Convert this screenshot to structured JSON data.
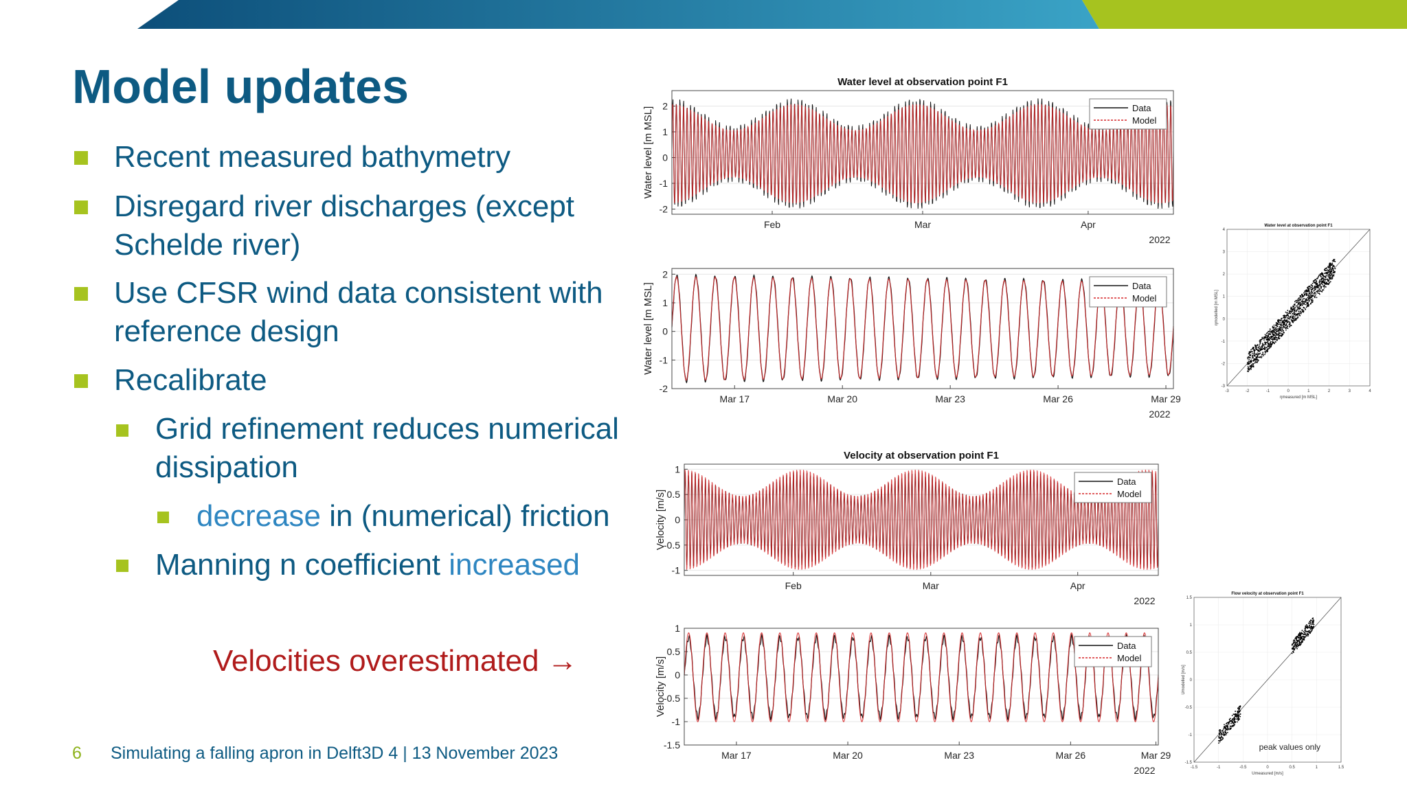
{
  "slide": {
    "title": "Model updates",
    "bullets": [
      {
        "level": 1,
        "lines": [
          "Recent measured bathymetry"
        ]
      },
      {
        "level": 1,
        "lines": [
          "Disregard river discharges (except",
          "Schelde river)"
        ]
      },
      {
        "level": 1,
        "lines": [
          "Use CFSR wind data consistent with",
          "reference design"
        ]
      },
      {
        "level": 1,
        "lines": [
          "Recalibrate"
        ]
      },
      {
        "level": 2,
        "lines": [
          "Grid refinement reduces numerical",
          "dissipation"
        ]
      },
      {
        "level": 3,
        "accent": "decrease",
        "rest": " in (numerical) friction"
      },
      {
        "level": 2,
        "text": "Manning n coefficient ",
        "accent": "increased"
      }
    ],
    "callout": "Velocities overestimated →",
    "footer": {
      "page": "6",
      "text": "Simulating a falling apron in Delft3D 4 | 13 November 2023"
    }
  },
  "colors": {
    "title": "#0d5a82",
    "bullet_square": "#a6c31f",
    "accent": "#2e86c1",
    "callout": "#b01b1b",
    "data": "#111111",
    "model": "#d62728"
  },
  "chart_data": [
    {
      "type": "line",
      "title": "Water level at observation point F1",
      "ylabel": "Water level [m MSL]",
      "yticks": [
        "-2",
        "-1",
        "0",
        "1",
        "2"
      ],
      "ylim": [
        -2.2,
        2.6
      ],
      "xticks": [
        "Feb",
        "Mar",
        "Apr"
      ],
      "year": "2022",
      "legend": [
        "Data",
        "Model"
      ],
      "series": [
        {
          "name": "Data"
        },
        {
          "name": "Model"
        }
      ]
    },
    {
      "type": "line",
      "title": "",
      "ylabel": "Water level [m MSL]",
      "yticks": [
        "-2",
        "-1",
        "0",
        "1",
        "2"
      ],
      "ylim": [
        -2,
        2.2
      ],
      "xticks": [
        "Mar 17",
        "Mar 20",
        "Mar 23",
        "Mar 26",
        "Mar 29"
      ],
      "year": "2022",
      "legend": [
        "Data",
        "Model"
      ],
      "series": [
        {
          "name": "Data"
        },
        {
          "name": "Model"
        }
      ]
    },
    {
      "type": "line",
      "title": "Velocity at observation point F1",
      "ylabel": "Velocity [m/s]",
      "yticks": [
        "-1",
        "-0.5",
        "0",
        "0.5",
        "1"
      ],
      "ylim": [
        -1.1,
        1.1
      ],
      "xticks": [
        "Feb",
        "Mar",
        "Apr"
      ],
      "year": "2022",
      "legend": [
        "Data",
        "Model"
      ],
      "series": [
        {
          "name": "Data"
        },
        {
          "name": "Model"
        }
      ]
    },
    {
      "type": "line",
      "title": "",
      "ylabel": "Velocity [m/s]",
      "yticks": [
        "-1.5",
        "-1",
        "-0.5",
        "0",
        "0.5",
        "1"
      ],
      "ylim": [
        -1.5,
        1
      ],
      "xticks": [
        "Mar 17",
        "Mar 20",
        "Mar 23",
        "Mar 26",
        "Mar 29"
      ],
      "year": "2022",
      "legend": [
        "Data",
        "Model"
      ],
      "series": [
        {
          "name": "Data"
        },
        {
          "name": "Model"
        }
      ]
    },
    {
      "type": "scatter",
      "title": "Water level at observation point F1",
      "xlabel": "ηmeasured [m MSL]",
      "ylabel": "ηmodelled [m MSL]",
      "ticks": [
        "-3",
        "-2",
        "-1",
        "0",
        "1",
        "2",
        "3",
        "4"
      ],
      "xlim": [
        -3,
        4
      ],
      "ylim": [
        -3,
        4
      ]
    },
    {
      "type": "scatter",
      "title": "Flow velocity at observation point F1",
      "xlabel": "Umeasured [m/s]",
      "ylabel": "Umodelled [m/s]",
      "ticks": [
        "-1.5",
        "-1",
        "-0.5",
        "0",
        "0.5",
        "1",
        "1.5"
      ],
      "xlim": [
        -1.5,
        1.5
      ],
      "ylim": [
        -1.5,
        1.5
      ],
      "annotation": "peak values only"
    }
  ]
}
